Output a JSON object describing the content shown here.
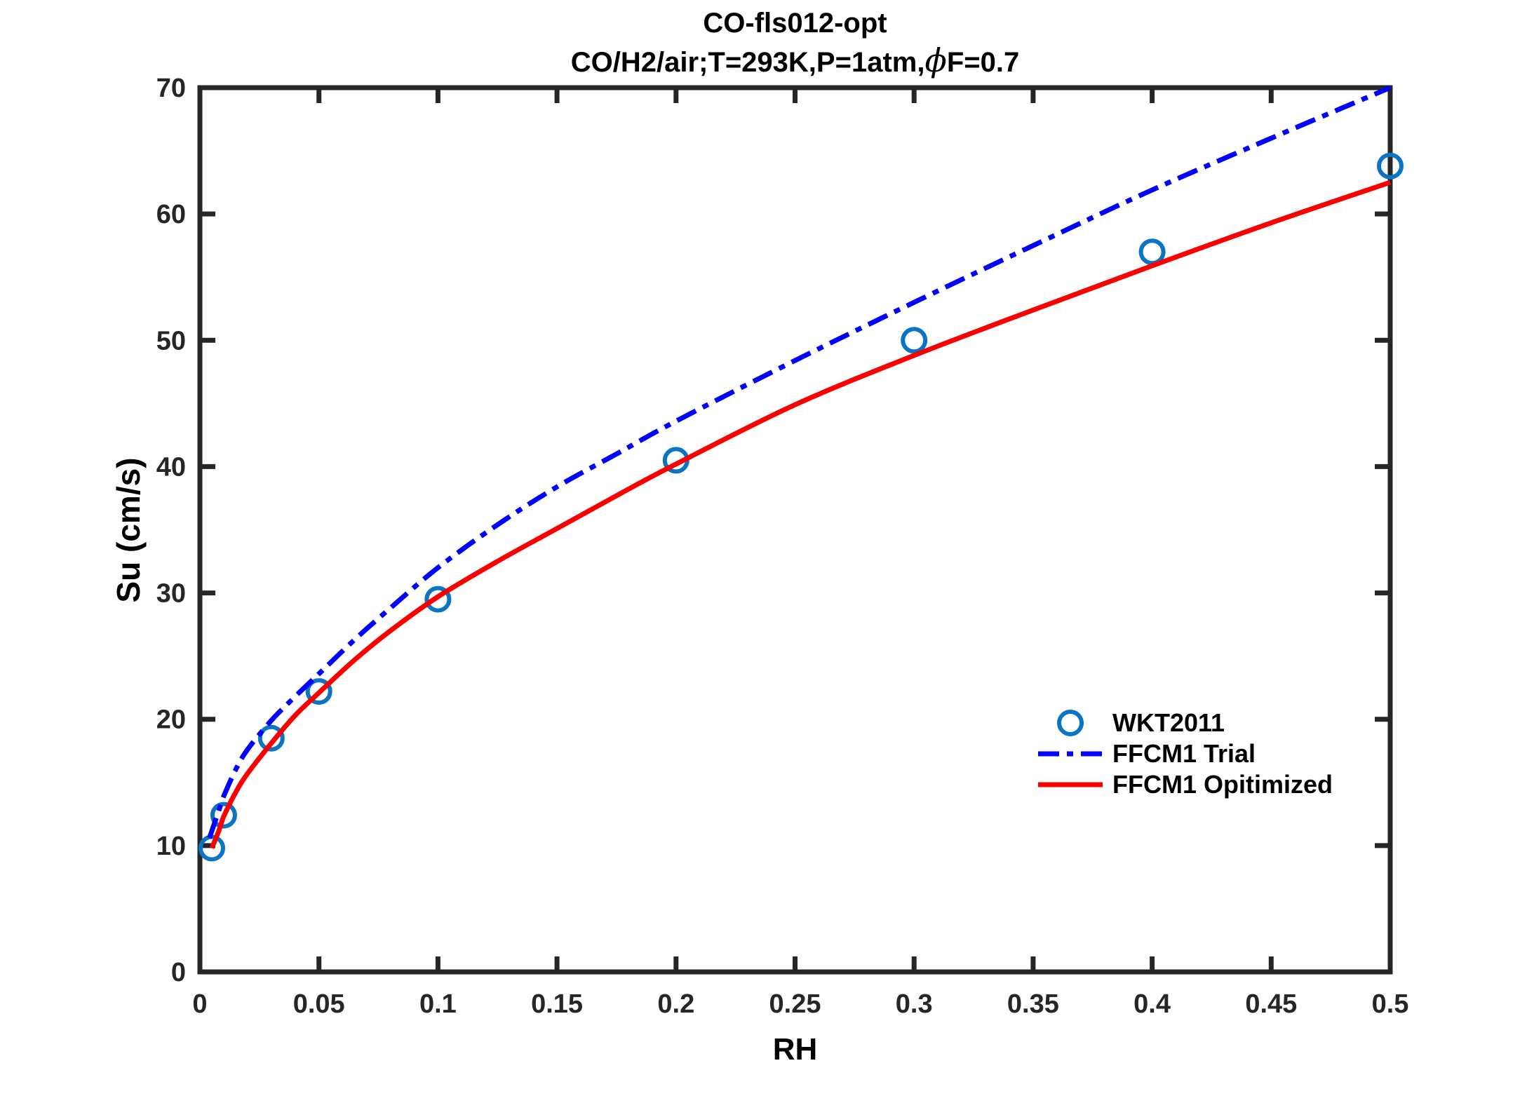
{
  "title": {
    "line1": "CO-fls012-opt",
    "line2_pre": "CO/H2/air;T=293K,P=1atm,",
    "line2_phi": "ϕ",
    "line2_post": "F=0.7"
  },
  "colors": {
    "axis": "#262626",
    "marker_blue": "#0b74c4",
    "line_blue": "#0000fe",
    "line_red": "#fb0000",
    "background": "#ffffff"
  },
  "chart_data": {
    "type": "line",
    "title": "CO-fls012-opt  CO/H2/air;T=293K,P=1atm,phiF=0.7",
    "xlabel": "RH",
    "ylabel": "Su (cm/s)",
    "xlim": [
      0,
      0.5
    ],
    "ylim": [
      0,
      70
    ],
    "grid": false,
    "legend_position": "right-center-inside",
    "axes": {
      "x_ticks": [
        0,
        0.05,
        0.1,
        0.15,
        0.2,
        0.25,
        0.3,
        0.35,
        0.4,
        0.45,
        0.5
      ],
      "x_tick_labels": [
        "0",
        "0.05",
        "0.1",
        "0.15",
        "0.2",
        "0.25",
        "0.3",
        "0.35",
        "0.4",
        "0.45",
        "0.5"
      ],
      "y_ticks": [
        0,
        10,
        20,
        30,
        40,
        50,
        60,
        70
      ],
      "y_tick_labels": [
        "0",
        "10",
        "20",
        "30",
        "40",
        "50",
        "60",
        "70"
      ]
    },
    "series": [
      {
        "name": "WKT2011",
        "kind": "scatter",
        "marker": "circle",
        "color": "#0b74c4",
        "points": [
          [
            0.005,
            9.8
          ],
          [
            0.01,
            12.4
          ],
          [
            0.03,
            18.5
          ],
          [
            0.05,
            22.2
          ],
          [
            0.1,
            29.5
          ],
          [
            0.2,
            40.5
          ],
          [
            0.3,
            50.0
          ],
          [
            0.4,
            57.0
          ],
          [
            0.5,
            63.8
          ]
        ]
      },
      {
        "name": "FFCM1 Trial",
        "kind": "line",
        "style": "dashdot",
        "color": "#0000fe",
        "points": [
          [
            0.004,
            10.6
          ],
          [
            0.006,
            11.7
          ],
          [
            0.008,
            12.8
          ],
          [
            0.01,
            13.9
          ],
          [
            0.015,
            16.0
          ],
          [
            0.02,
            17.6
          ],
          [
            0.03,
            19.9
          ],
          [
            0.04,
            21.8
          ],
          [
            0.05,
            23.6
          ],
          [
            0.065,
            26.3
          ],
          [
            0.08,
            28.8
          ],
          [
            0.1,
            32.0
          ],
          [
            0.125,
            35.4
          ],
          [
            0.15,
            38.4
          ],
          [
            0.175,
            41.0
          ],
          [
            0.2,
            43.6
          ],
          [
            0.25,
            48.4
          ],
          [
            0.3,
            53.0
          ],
          [
            0.35,
            57.5
          ],
          [
            0.4,
            61.9
          ],
          [
            0.45,
            66.0
          ],
          [
            0.5,
            70.0
          ]
        ]
      },
      {
        "name": "FFCM1 Opitimized",
        "kind": "line",
        "style": "solid",
        "color": "#fb0000",
        "points": [
          [
            0.005,
            9.8
          ],
          [
            0.008,
            11.2
          ],
          [
            0.01,
            12.3
          ],
          [
            0.015,
            14.2
          ],
          [
            0.02,
            15.7
          ],
          [
            0.03,
            18.1
          ],
          [
            0.04,
            20.3
          ],
          [
            0.05,
            22.1
          ],
          [
            0.065,
            24.7
          ],
          [
            0.08,
            27.0
          ],
          [
            0.1,
            29.7
          ],
          [
            0.125,
            32.5
          ],
          [
            0.15,
            35.1
          ],
          [
            0.175,
            37.7
          ],
          [
            0.2,
            40.2
          ],
          [
            0.25,
            44.9
          ],
          [
            0.3,
            48.8
          ],
          [
            0.35,
            52.4
          ],
          [
            0.4,
            55.9
          ],
          [
            0.45,
            59.3
          ],
          [
            0.5,
            62.5
          ]
        ]
      }
    ]
  }
}
